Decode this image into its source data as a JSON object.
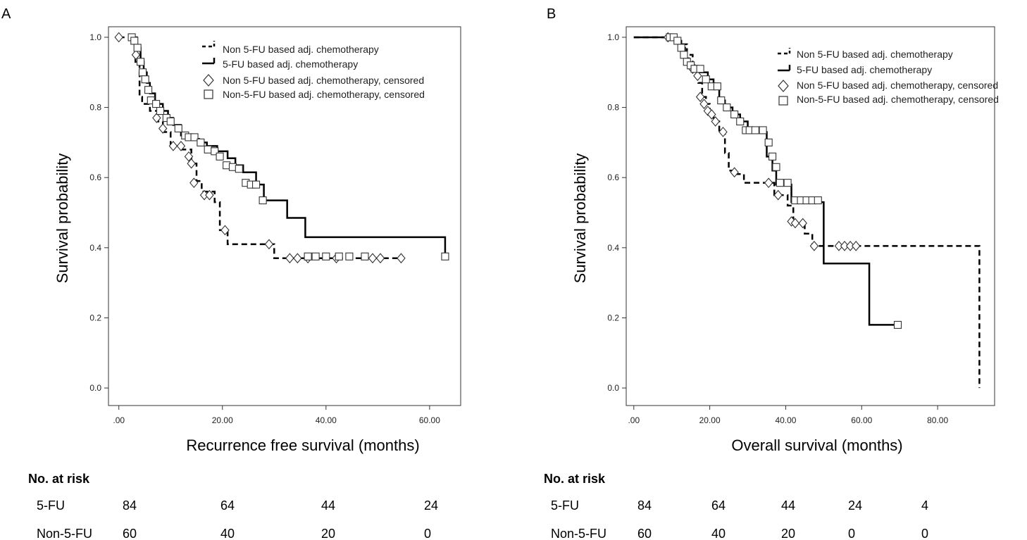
{
  "chart_data": [
    {
      "type": "line",
      "subtype": "kaplan-meier",
      "panel": "A",
      "xlabel": "Recurrence free survival (months)",
      "ylabel": "Survival probability",
      "xlim": [
        -2,
        66
      ],
      "ylim": [
        -0.05,
        1.03
      ],
      "xticks": [
        0,
        20,
        40,
        60
      ],
      "xtick_labels": [
        ".00",
        "20.00",
        "40.00",
        "60.00"
      ],
      "yticks": [
        0,
        0.2,
        0.4,
        0.6,
        0.8,
        1.0
      ],
      "ytick_labels": [
        "0.0",
        "0.2",
        "0.4",
        "0.6",
        "0.8",
        "1.0"
      ],
      "legend": [
        {
          "label": "Non 5-FU based adj. chemotherapy",
          "kind": "dashed"
        },
        {
          "label": "5-FU based adj. chemotherapy",
          "kind": "solid"
        },
        {
          "label": "Non 5-FU based adj. chemotherapy, censored",
          "kind": "diamond"
        },
        {
          "label": "Non-5-FU based adj. chemotherapy, censored",
          "kind": "square"
        }
      ],
      "series": [
        {
          "name": "Non 5-FU based adj. chemotherapy",
          "style": "dashed",
          "x": [
            0,
            2.5,
            3.2,
            4.0,
            4.5,
            6.0,
            7.5,
            8.5,
            10,
            12,
            14,
            15,
            16,
            18.5,
            19.5,
            21,
            29,
            30,
            55
          ],
          "y": [
            1.0,
            1.0,
            0.93,
            0.83,
            0.81,
            0.79,
            0.76,
            0.73,
            0.69,
            0.68,
            0.64,
            0.59,
            0.56,
            0.53,
            0.45,
            0.41,
            0.41,
            0.37,
            0.37
          ],
          "censored": [
            [
              0,
              1.0
            ],
            [
              3.3,
              0.95
            ],
            [
              7.3,
              0.77
            ],
            [
              8.5,
              0.74
            ],
            [
              10.5,
              0.69
            ],
            [
              12,
              0.69
            ],
            [
              13.5,
              0.66
            ],
            [
              14,
              0.64
            ],
            [
              14.5,
              0.585
            ],
            [
              16.5,
              0.55
            ],
            [
              17.5,
              0.55
            ],
            [
              20.5,
              0.45
            ],
            [
              29,
              0.41
            ],
            [
              33,
              0.37
            ],
            [
              34.5,
              0.37
            ],
            [
              36.5,
              0.37
            ],
            [
              42,
              0.37
            ],
            [
              49,
              0.37
            ],
            [
              50.5,
              0.37
            ],
            [
              54.5,
              0.37
            ]
          ]
        },
        {
          "name": "5-FU based adj. chemotherapy",
          "style": "solid",
          "x": [
            2.5,
            3.5,
            4.2,
            4.8,
            5.4,
            6.0,
            7.0,
            8.5,
            9.5,
            10.5,
            12.0,
            14.0,
            15.5,
            17.0,
            19.0,
            21.0,
            22.5,
            24.0,
            26.5,
            28.0,
            32.5,
            36.0,
            63.0
          ],
          "y": [
            1.0,
            0.97,
            0.93,
            0.9,
            0.87,
            0.84,
            0.81,
            0.79,
            0.77,
            0.75,
            0.72,
            0.71,
            0.7,
            0.69,
            0.675,
            0.655,
            0.635,
            0.615,
            0.58,
            0.535,
            0.485,
            0.43,
            0.375
          ],
          "censored": [
            [
              2.5,
              1.0
            ],
            [
              3.0,
              0.99
            ],
            [
              3.6,
              0.97
            ],
            [
              4.2,
              0.93
            ],
            [
              4.6,
              0.9
            ],
            [
              5.1,
              0.88
            ],
            [
              5.7,
              0.85
            ],
            [
              6.2,
              0.82
            ],
            [
              7.2,
              0.81
            ],
            [
              8.0,
              0.79
            ],
            [
              9.2,
              0.77
            ],
            [
              10.0,
              0.76
            ],
            [
              11.5,
              0.74
            ],
            [
              12.8,
              0.72
            ],
            [
              13.5,
              0.715
            ],
            [
              14.6,
              0.715
            ],
            [
              15.8,
              0.7
            ],
            [
              17.2,
              0.68
            ],
            [
              18.5,
              0.675
            ],
            [
              19.5,
              0.66
            ],
            [
              20.8,
              0.635
            ],
            [
              22.0,
              0.63
            ],
            [
              23.2,
              0.625
            ],
            [
              24.5,
              0.585
            ],
            [
              25.5,
              0.58
            ],
            [
              26.5,
              0.58
            ],
            [
              27.8,
              0.535
            ],
            [
              36.5,
              0.375
            ],
            [
              38.0,
              0.375
            ],
            [
              40.0,
              0.375
            ],
            [
              42.5,
              0.375
            ],
            [
              44.5,
              0.375
            ],
            [
              47.5,
              0.375
            ],
            [
              63.0,
              0.375
            ]
          ]
        }
      ],
      "risk_table": {
        "title": "No. at risk",
        "rows": [
          {
            "label": "5-FU",
            "values": [
              "84",
              "64",
              "44",
              "24"
            ]
          },
          {
            "label": "Non-5-FU",
            "values": [
              "60",
              "40",
              "20",
              "0"
            ]
          }
        ]
      }
    },
    {
      "type": "line",
      "subtype": "kaplan-meier",
      "panel": "B",
      "xlabel": "Overall survival (months)",
      "ylabel": "Survival probability",
      "xlim": [
        -2,
        95
      ],
      "ylim": [
        -0.05,
        1.03
      ],
      "xticks": [
        0,
        20,
        40,
        60,
        80
      ],
      "xtick_labels": [
        ".00",
        "20.00",
        "40.00",
        "60.00",
        "80.00"
      ],
      "yticks": [
        0,
        0.2,
        0.4,
        0.6,
        0.8,
        1.0
      ],
      "ytick_labels": [
        "0.0",
        "0.2",
        "0.4",
        "0.6",
        "0.8",
        "1.0"
      ],
      "legend": [
        {
          "label": "Non 5-FU based adj. chemotherapy",
          "kind": "dashed"
        },
        {
          "label": "5-FU based adj. chemotherapy",
          "kind": "solid"
        },
        {
          "label": "Non 5-FU based adj. chemotherapy, censored",
          "kind": "diamond"
        },
        {
          "label": "Non-5-FU based adj. chemotherapy, censored",
          "kind": "square"
        }
      ],
      "series": [
        {
          "name": "Non 5-FU based adj. chemotherapy",
          "style": "dashed",
          "x": [
            0,
            9,
            12,
            14,
            15.5,
            17,
            18,
            19,
            20,
            21,
            22.5,
            24,
            25,
            27,
            29,
            32.5,
            37,
            38.5,
            40.5,
            42,
            45,
            47,
            91,
            91
          ],
          "y": [
            1.0,
            1.0,
            0.98,
            0.95,
            0.91,
            0.87,
            0.83,
            0.81,
            0.79,
            0.76,
            0.73,
            0.67,
            0.62,
            0.61,
            0.585,
            0.585,
            0.55,
            0.55,
            0.52,
            0.47,
            0.44,
            0.405,
            0.405,
            0.0
          ],
          "censored": [
            [
              9,
              1.0
            ],
            [
              15.5,
              0.91
            ],
            [
              16.8,
              0.89
            ],
            [
              17.5,
              0.83
            ],
            [
              18.5,
              0.81
            ],
            [
              19.5,
              0.79
            ],
            [
              20.5,
              0.78
            ],
            [
              21.5,
              0.76
            ],
            [
              23.5,
              0.73
            ],
            [
              26.5,
              0.615
            ],
            [
              35.5,
              0.585
            ],
            [
              38,
              0.55
            ],
            [
              41.5,
              0.475
            ],
            [
              42.5,
              0.47
            ],
            [
              44.5,
              0.47
            ],
            [
              47.5,
              0.405
            ],
            [
              54,
              0.405
            ],
            [
              55.5,
              0.405
            ],
            [
              57,
              0.405
            ],
            [
              58.5,
              0.405
            ]
          ]
        },
        {
          "name": "5-FU based adj. chemotherapy",
          "style": "solid",
          "x": [
            0,
            9,
            11,
            12.5,
            13.5,
            14.5,
            16,
            17.5,
            19.5,
            21,
            22.5,
            24,
            26,
            28,
            30,
            33,
            35,
            36.5,
            37.5,
            41.5,
            50,
            62,
            70
          ],
          "y": [
            1.0,
            1.0,
            0.99,
            0.97,
            0.94,
            0.92,
            0.91,
            0.9,
            0.88,
            0.86,
            0.82,
            0.8,
            0.78,
            0.76,
            0.73,
            0.73,
            0.66,
            0.62,
            0.58,
            0.53,
            0.355,
            0.18,
            0.18
          ],
          "censored": [
            [
              9.5,
              1.0
            ],
            [
              10.5,
              1.0
            ],
            [
              11.5,
              0.99
            ],
            [
              12.5,
              0.97
            ],
            [
              13.2,
              0.95
            ],
            [
              14.0,
              0.93
            ],
            [
              15.0,
              0.92
            ],
            [
              16.0,
              0.91
            ],
            [
              17.5,
              0.91
            ],
            [
              19.0,
              0.88
            ],
            [
              20.5,
              0.86
            ],
            [
              22.0,
              0.86
            ],
            [
              23.0,
              0.82
            ],
            [
              24.5,
              0.8
            ],
            [
              26.5,
              0.78
            ],
            [
              28.0,
              0.76
            ],
            [
              29.5,
              0.735
            ],
            [
              30.5,
              0.735
            ],
            [
              32.0,
              0.735
            ],
            [
              34.0,
              0.735
            ],
            [
              35.5,
              0.7
            ],
            [
              36.5,
              0.66
            ],
            [
              37.5,
              0.63
            ],
            [
              38.5,
              0.585
            ],
            [
              40.5,
              0.585
            ],
            [
              42.5,
              0.535
            ],
            [
              44.0,
              0.535
            ],
            [
              45.5,
              0.535
            ],
            [
              47.0,
              0.535
            ],
            [
              48.5,
              0.535
            ],
            [
              69.5,
              0.18
            ]
          ]
        }
      ],
      "risk_table": {
        "title": "No. at risk",
        "rows": [
          {
            "label": "5-FU",
            "values": [
              "84",
              "64",
              "44",
              "24",
              "4"
            ]
          },
          {
            "label": "Non-5-FU",
            "values": [
              "60",
              "40",
              "20",
              "0",
              "0"
            ]
          }
        ]
      }
    }
  ]
}
